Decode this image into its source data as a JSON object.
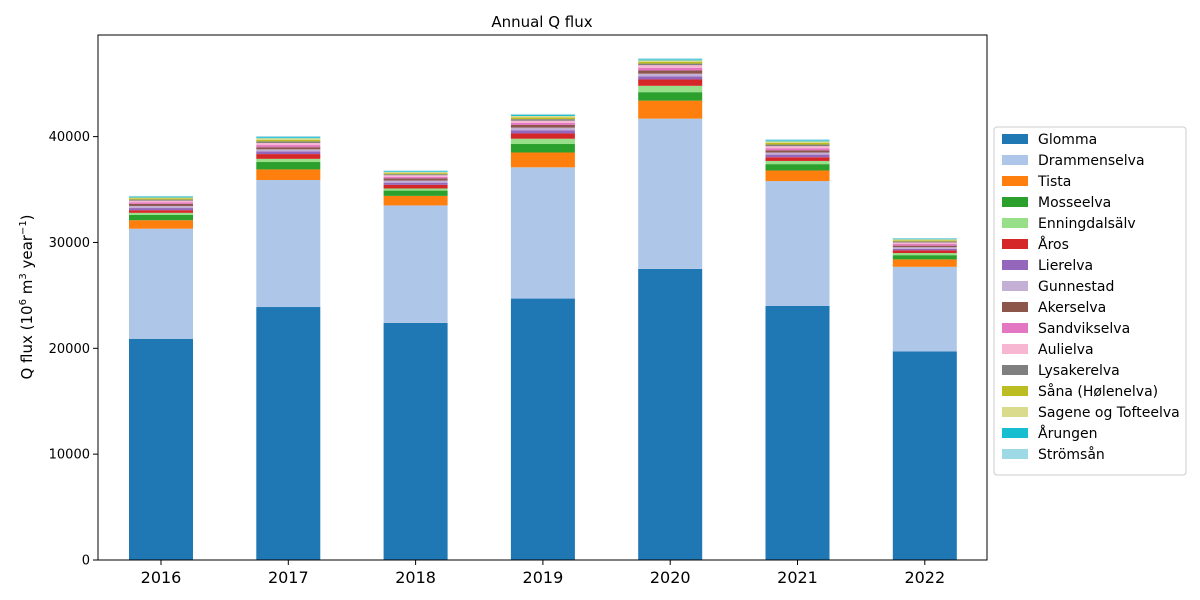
{
  "chart_data": {
    "type": "bar",
    "stacked": true,
    "title": "Annual Q flux",
    "xlabel": "",
    "ylabel_parts": [
      "Q flux (10",
      "6",
      " m",
      "3",
      " year",
      "−1",
      ")"
    ],
    "ylim": [
      0,
      49600
    ],
    "yticks": [
      0,
      10000,
      20000,
      30000,
      40000
    ],
    "legend_position": "right",
    "grid": false,
    "categories": [
      "2016",
      "2017",
      "2018",
      "2019",
      "2020",
      "2021",
      "2022"
    ],
    "series": [
      {
        "name": "Glomma",
        "color": "#1f77b4",
        "values": [
          20900,
          23900,
          22400,
          24700,
          27500,
          24000,
          19700
        ]
      },
      {
        "name": "Drammenselva",
        "color": "#aec7e8",
        "values": [
          10400,
          12000,
          11100,
          12400,
          14200,
          11800,
          8000
        ]
      },
      {
        "name": "Tista",
        "color": "#ff7f0e",
        "values": [
          800,
          1000,
          900,
          1400,
          1700,
          1000,
          700
        ]
      },
      {
        "name": "Mosseelva",
        "color": "#2ca02c",
        "values": [
          500,
          700,
          500,
          800,
          800,
          600,
          400
        ]
      },
      {
        "name": "Enningdalsälv",
        "color": "#98df8a",
        "values": [
          200,
          300,
          200,
          500,
          600,
          300,
          200
        ]
      },
      {
        "name": "Åros",
        "color": "#d62728",
        "values": [
          250,
          450,
          350,
          500,
          600,
          350,
          250
        ]
      },
      {
        "name": "Lierelva",
        "color": "#9467bd",
        "values": [
          200,
          250,
          200,
          300,
          300,
          250,
          150
        ]
      },
      {
        "name": "Gunnestad",
        "color": "#c5b0d5",
        "values": [
          200,
          200,
          200,
          250,
          250,
          200,
          150
        ]
      },
      {
        "name": "Akerselva",
        "color": "#8c564b",
        "values": [
          200,
          200,
          200,
          250,
          300,
          200,
          150
        ]
      },
      {
        "name": "Sandvikselva",
        "color": "#e377c2",
        "values": [
          150,
          200,
          150,
          200,
          250,
          200,
          150
        ]
      },
      {
        "name": "Aulielva",
        "color": "#f7b6d2",
        "values": [
          150,
          200,
          150,
          200,
          250,
          200,
          150
        ]
      },
      {
        "name": "Lysakerelva",
        "color": "#7f7f7f",
        "values": [
          100,
          150,
          100,
          150,
          150,
          150,
          100
        ]
      },
      {
        "name": "Såna (Hølenelva)",
        "color": "#bcbd22",
        "values": [
          100,
          150,
          100,
          150,
          150,
          150,
          100
        ]
      },
      {
        "name": "Sagene og Tofteelva",
        "color": "#dbdb8d",
        "values": [
          100,
          150,
          100,
          150,
          150,
          150,
          100
        ]
      },
      {
        "name": "Årungen",
        "color": "#17becf",
        "values": [
          80,
          100,
          80,
          100,
          100,
          100,
          60
        ]
      },
      {
        "name": "Strömsån",
        "color": "#9edae5",
        "values": [
          70,
          100,
          70,
          100,
          100,
          100,
          60
        ]
      }
    ]
  }
}
